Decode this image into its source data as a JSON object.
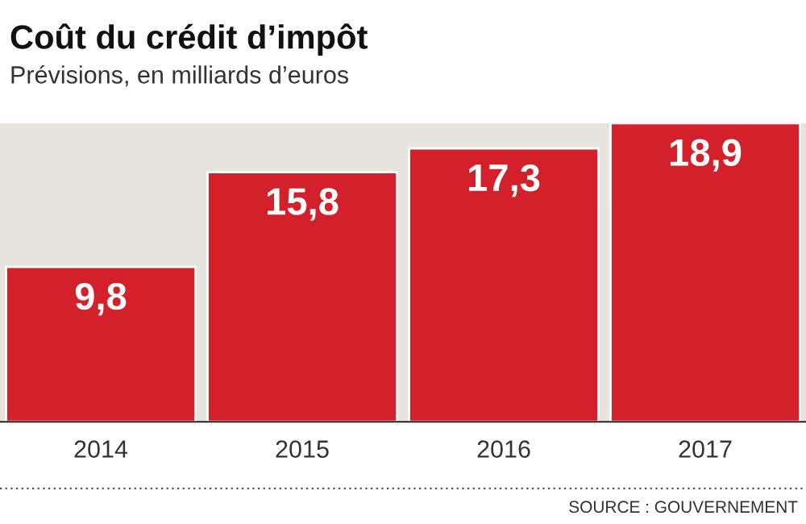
{
  "chart_data": {
    "type": "bar",
    "title": "Coût du crédit d’impôt",
    "subtitle": "Prévisions, en milliards d’euros",
    "categories": [
      "2014",
      "2015",
      "2016",
      "2017"
    ],
    "values": [
      9.8,
      15.8,
      17.3,
      18.9
    ],
    "value_labels": [
      "9,8",
      "15,8",
      "17,3",
      "18,9"
    ],
    "color": "#d3202a",
    "annotations": [
      "SOURCE : GOUVERNEMENT"
    ]
  }
}
